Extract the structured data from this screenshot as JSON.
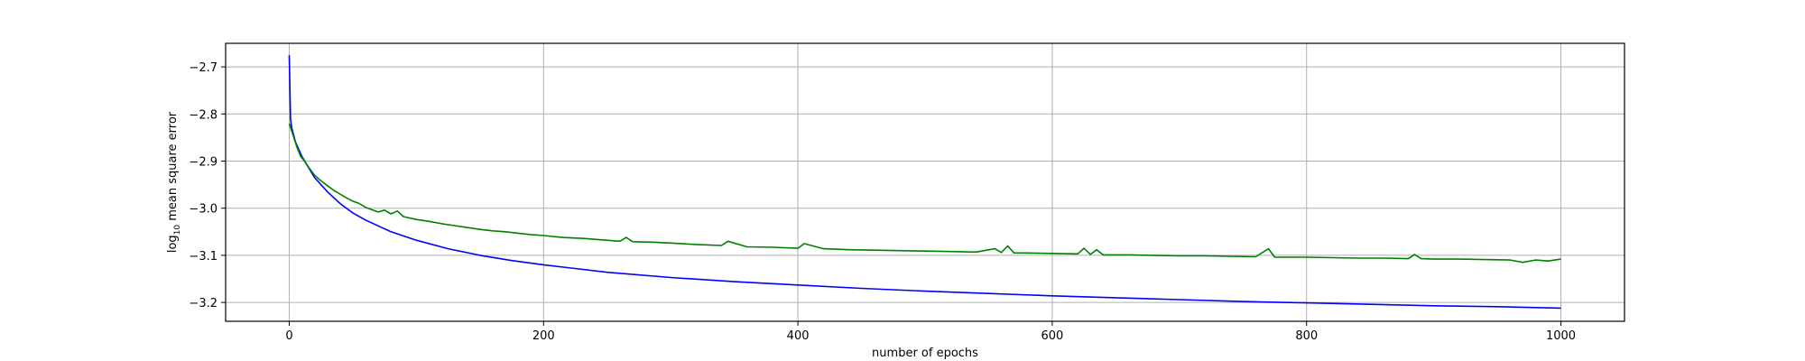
{
  "chart_data": {
    "type": "line",
    "title": "",
    "xlabel": "number of epochs",
    "ylabel_prefix": "log",
    "ylabel_subscript": "10",
    "ylabel_suffix": " mean square error",
    "xlim": [
      -50,
      1050
    ],
    "ylim": [
      -3.24,
      -2.65
    ],
    "xticks": [
      0,
      200,
      400,
      600,
      800,
      1000
    ],
    "yticks": [
      -2.7,
      -2.8,
      -2.9,
      -3.0,
      -3.1,
      -3.2
    ],
    "xtick_labels": [
      "0",
      "200",
      "400",
      "600",
      "800",
      "1000"
    ],
    "ytick_labels": [
      "−2.7",
      "−2.8",
      "−2.9",
      "−3.0",
      "−3.1",
      "−3.2"
    ],
    "grid": true,
    "legend": "none",
    "series": [
      {
        "color": "#0000ff",
        "x": [
          0,
          1,
          2,
          5,
          10,
          20,
          30,
          40,
          50,
          60,
          80,
          100,
          125,
          150,
          175,
          200,
          250,
          300,
          350,
          400,
          450,
          500,
          550,
          600,
          650,
          700,
          750,
          800,
          850,
          900,
          950,
          1000
        ],
        "y": [
          -2.675,
          -2.81,
          -2.83,
          -2.86,
          -2.89,
          -2.935,
          -2.965,
          -2.99,
          -3.01,
          -3.025,
          -3.05,
          -3.068,
          -3.086,
          -3.1,
          -3.111,
          -3.12,
          -3.136,
          -3.147,
          -3.156,
          -3.163,
          -3.17,
          -3.176,
          -3.181,
          -3.186,
          -3.19,
          -3.194,
          -3.198,
          -3.201,
          -3.204,
          -3.207,
          -3.209,
          -3.212
        ]
      },
      {
        "color": "#008000",
        "x": [
          0,
          3,
          6,
          9,
          12,
          15,
          20,
          25,
          30,
          35,
          40,
          45,
          50,
          55,
          60,
          70,
          75,
          80,
          85,
          90,
          100,
          110,
          120,
          130,
          140,
          150,
          160,
          170,
          180,
          190,
          200,
          215,
          230,
          245,
          260,
          265,
          270,
          285,
          300,
          320,
          340,
          345,
          360,
          380,
          400,
          405,
          420,
          440,
          460,
          480,
          500,
          520,
          540,
          555,
          560,
          565,
          570,
          580,
          600,
          620,
          625,
          630,
          635,
          640,
          660,
          680,
          700,
          720,
          740,
          760,
          770,
          775,
          780,
          800,
          820,
          840,
          860,
          880,
          885,
          890,
          900,
          920,
          940,
          960,
          970,
          980,
          990,
          1000
        ],
        "y": [
          -2.82,
          -2.845,
          -2.87,
          -2.89,
          -2.9,
          -2.912,
          -2.93,
          -2.942,
          -2.952,
          -2.962,
          -2.97,
          -2.978,
          -2.985,
          -2.99,
          -2.998,
          -3.008,
          -3.004,
          -3.012,
          -3.006,
          -3.018,
          -3.024,
          -3.028,
          -3.033,
          -3.037,
          -3.041,
          -3.045,
          -3.048,
          -3.05,
          -3.053,
          -3.056,
          -3.058,
          -3.062,
          -3.064,
          -3.067,
          -3.07,
          -3.062,
          -3.071,
          -3.072,
          -3.074,
          -3.077,
          -3.079,
          -3.07,
          -3.082,
          -3.083,
          -3.085,
          -3.075,
          -3.086,
          -3.088,
          -3.089,
          -3.09,
          -3.091,
          -3.092,
          -3.093,
          -3.086,
          -3.094,
          -3.08,
          -3.095,
          -3.095,
          -3.096,
          -3.097,
          -3.085,
          -3.098,
          -3.088,
          -3.099,
          -3.099,
          -3.1,
          -3.101,
          -3.101,
          -3.102,
          -3.103,
          -3.086,
          -3.104,
          -3.104,
          -3.104,
          -3.105,
          -3.106,
          -3.106,
          -3.107,
          -3.098,
          -3.107,
          -3.108,
          -3.108,
          -3.109,
          -3.11,
          -3.115,
          -3.11,
          -3.112,
          -3.108
        ]
      }
    ]
  }
}
